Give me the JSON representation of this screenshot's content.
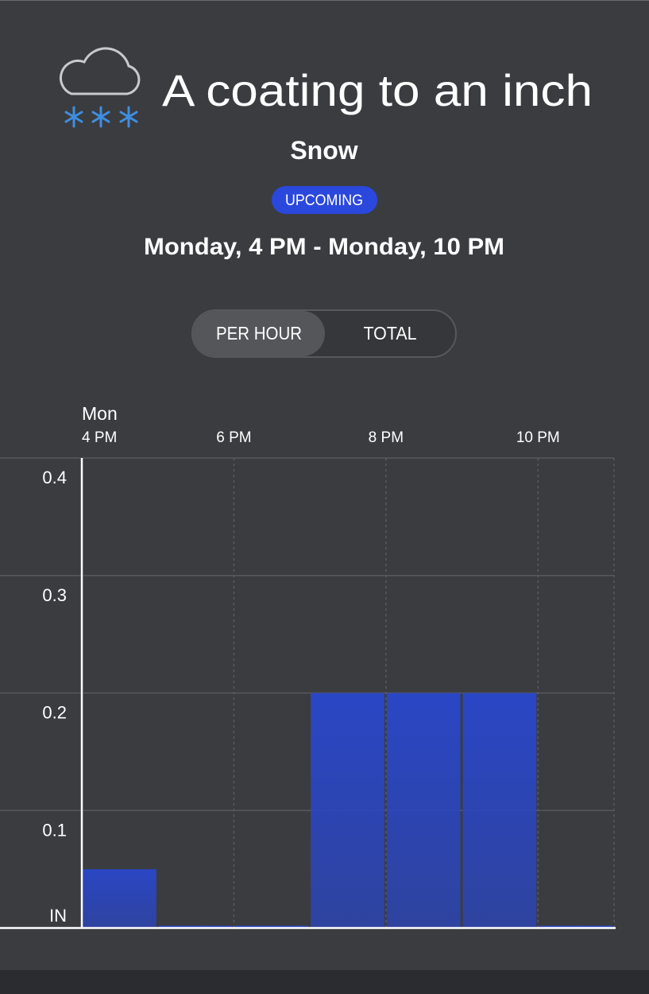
{
  "header": {
    "title": "A coating to an inch",
    "subtitle": "Snow",
    "badge": "UPCOMING",
    "time_range": "Monday, 4 PM - Monday, 10 PM"
  },
  "toggle": {
    "options": [
      "PER HOUR",
      "TOTAL"
    ],
    "selected_index": 0
  },
  "chart_data": {
    "type": "bar",
    "day_label": "Mon",
    "categories": [
      "4 PM",
      null,
      "6 PM",
      null,
      "8 PM",
      null,
      "10 PM"
    ],
    "values": [
      0.05,
      0.002,
      0.002,
      0.2,
      0.2,
      0.2,
      0.002
    ],
    "color": "#2a46c4",
    "ylim": [
      0,
      0.4
    ],
    "yticks": [
      {
        "value": 0,
        "label": "IN"
      },
      0.1,
      0.2,
      0.3,
      0.4
    ],
    "grid": true
  }
}
